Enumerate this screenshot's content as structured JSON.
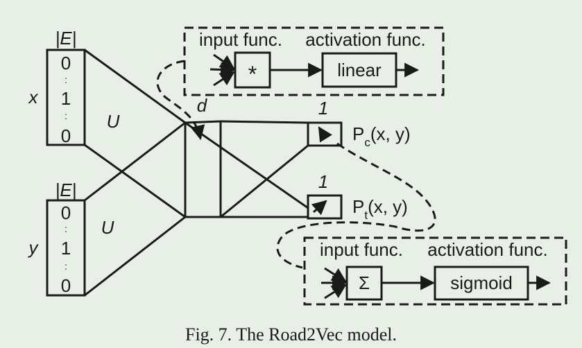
{
  "input_x": {
    "header": "|E|",
    "var_label": "x",
    "cells": [
      "0",
      ":",
      "1",
      ":",
      "0"
    ],
    "matrix_label": "U"
  },
  "input_y": {
    "header": "|E|",
    "var_label": "y",
    "cells": [
      "0",
      ":",
      "1",
      ":",
      "0"
    ],
    "matrix_label": "U"
  },
  "hidden": {
    "label": "d"
  },
  "output_c": {
    "weight": "1",
    "label_main": "P",
    "label_sub": "c",
    "label_args": "(x, y)"
  },
  "output_t": {
    "weight": "1",
    "label_main": "P",
    "label_sub": "t",
    "label_args": "(x, y)"
  },
  "top_detail": {
    "input_func_label": "input func.",
    "activation_func_label": "activation func.",
    "op_symbol": "*",
    "activation": "linear"
  },
  "bottom_detail": {
    "input_func_label": "input func.",
    "activation_func_label": "activation func.",
    "op_symbol": "Σ",
    "activation": "sigmoid"
  },
  "caption": "Fig. 7.  The Road2Vec model.",
  "colors": {
    "background": "#e8efe6",
    "ink": "#1a1a1a"
  }
}
